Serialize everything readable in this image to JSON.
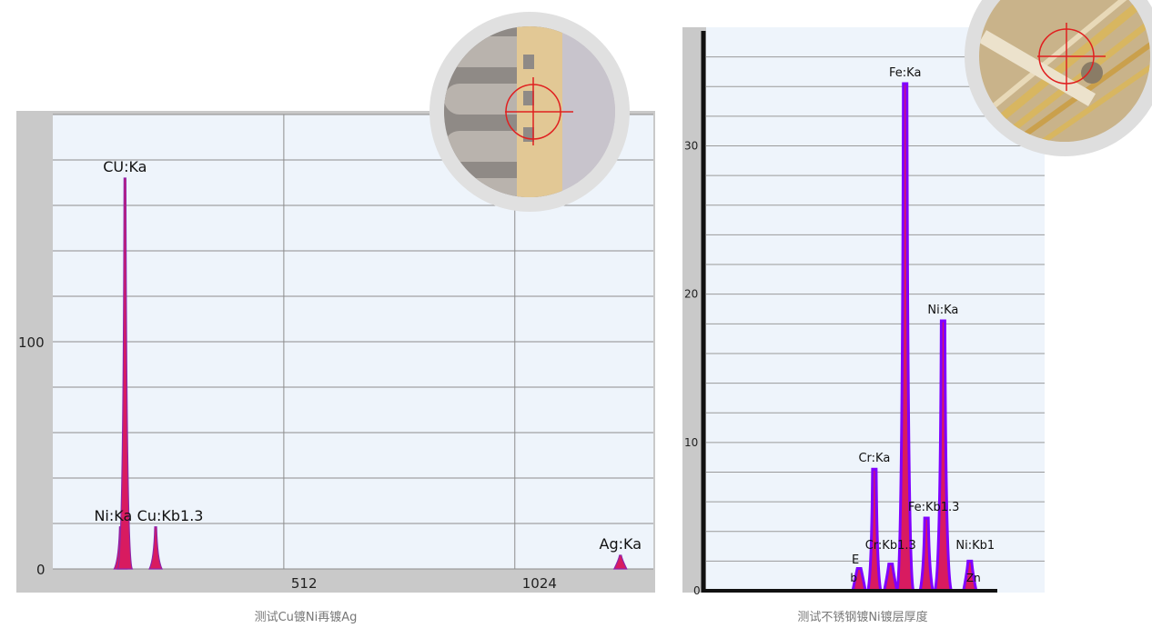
{
  "chart_data": [
    {
      "type": "area",
      "title": "",
      "caption": "测试Cu镀Ni再镀Ag",
      "xlabel": "",
      "ylabel": "",
      "xlim": [
        0,
        1331
      ],
      "ylim": [
        0,
        200
      ],
      "x_ticks": [
        512,
        1024
      ],
      "y_ticks": [
        0,
        100
      ],
      "grid": true,
      "peaks": [
        {
          "label": "Ni:Ka",
          "x": 150,
          "y": 18.5
        },
        {
          "label": "CU:Ka",
          "x": 160,
          "y": 172
        },
        {
          "label": "Cu:Kb1.3",
          "x": 228,
          "y": 18.5
        },
        {
          "label": "Ag:Ka",
          "x": 1258,
          "y": 6
        }
      ],
      "colors": {
        "fill": "#d81b60",
        "outline": "#8e24aa",
        "grid_bg": "#eef4fb"
      }
    },
    {
      "type": "area",
      "title": "",
      "caption": "测试不锈钢镀Ni镀层厚度",
      "xlabel": "",
      "ylabel": "",
      "xlim": [
        0,
        1000
      ],
      "ylim": [
        0,
        38
      ],
      "y_ticks": [
        0,
        10,
        20,
        30
      ],
      "grid": true,
      "peaks": [
        {
          "label": "E",
          "x": 452,
          "y": 1.5
        },
        {
          "label": "Cr:Ka",
          "x": 497,
          "y": 8.2
        },
        {
          "label": "Cr:Kb1.3",
          "x": 545,
          "y": 1.8
        },
        {
          "label": "Fe:Ka",
          "x": 588,
          "y": 34.2
        },
        {
          "label": "Fe:Kb1.3",
          "x": 651,
          "y": 4.9
        },
        {
          "label": "Ni:Ka",
          "x": 700,
          "y": 18.2
        },
        {
          "label": "Ni:Kb1",
          "x": 779,
          "y": 2.0
        }
      ],
      "extra_labels": [
        "b",
        "Zn"
      ],
      "colors": {
        "fill": "#d81b60",
        "outline": "#8000ff",
        "grid_bg": "#eef4fb"
      }
    }
  ]
}
